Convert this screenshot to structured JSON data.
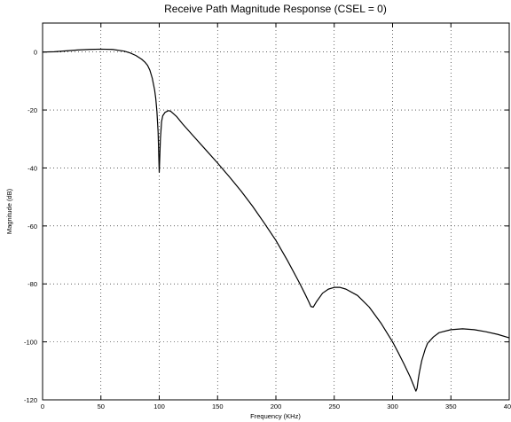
{
  "chart_data": {
    "type": "line",
    "title": "Receive Path Magnitude Response (CSEL = 0)",
    "xlabel": "Frequency (KHz)",
    "ylabel": "Magnitude (dB)",
    "xlim": [
      0,
      400
    ],
    "ylim": [
      -120,
      10
    ],
    "xticks": [
      0,
      50,
      100,
      150,
      200,
      250,
      300,
      350,
      400
    ],
    "yticks": [
      0,
      -20,
      -40,
      -60,
      -80,
      -100,
      -120
    ],
    "xtick_labels": [
      "0",
      "50",
      "100",
      "150",
      "200",
      "250",
      "300",
      "350",
      "400"
    ],
    "ytick_labels": [
      "0",
      "-20",
      "-40",
      "-60",
      "-80",
      "-100",
      "-120"
    ],
    "grid": true,
    "line_color": "#000000",
    "series": [
      {
        "x": [
          0,
          10,
          20,
          30,
          40,
          50,
          60,
          70,
          75,
          80,
          85,
          88,
          90,
          92,
          94,
          96,
          97,
          98,
          99,
          100,
          101,
          102,
          103,
          105,
          108,
          110,
          115,
          120,
          130,
          140,
          150,
          160,
          170,
          180,
          190,
          200,
          210,
          220,
          225,
          228,
          230,
          232,
          235,
          240,
          245,
          250,
          255,
          260,
          270,
          280,
          290,
          300,
          305,
          310,
          315,
          318,
          320,
          321,
          322,
          323,
          325,
          328,
          330,
          335,
          340,
          350,
          360,
          370,
          380,
          390,
          400
        ],
        "y": [
          0,
          0.1,
          0.4,
          0.7,
          0.9,
          1.0,
          0.9,
          0.3,
          -0.3,
          -1.2,
          -2.5,
          -3.6,
          -4.6,
          -6.3,
          -9.0,
          -13.0,
          -16.0,
          -20.5,
          -27.5,
          -41.5,
          -30.0,
          -24.0,
          -22.0,
          -20.8,
          -20.2,
          -20.5,
          -22.3,
          -24.8,
          -29.3,
          -33.8,
          -38.3,
          -43.0,
          -47.9,
          -53.2,
          -59.0,
          -65.0,
          -72.0,
          -79.5,
          -83.5,
          -86.0,
          -87.8,
          -88.0,
          -86.0,
          -83.2,
          -81.8,
          -81.2,
          -81.2,
          -81.8,
          -84.0,
          -88.0,
          -93.5,
          -100.0,
          -103.8,
          -107.8,
          -112.0,
          -115.0,
          -117.0,
          -116.0,
          -113.0,
          -110.5,
          -106.5,
          -102.5,
          -100.5,
          -98.3,
          -96.8,
          -95.8,
          -95.5,
          -95.8,
          -96.5,
          -97.4,
          -98.6
        ]
      }
    ]
  }
}
